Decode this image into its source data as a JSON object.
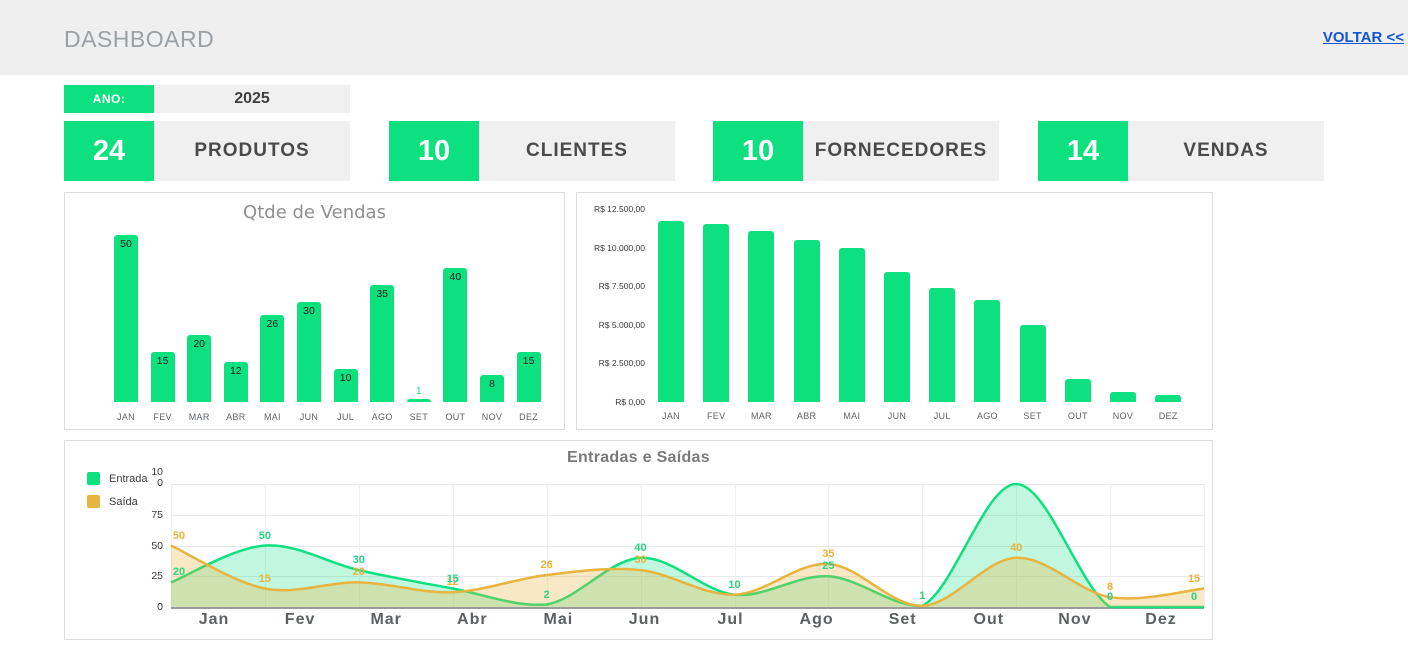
{
  "header": {
    "title": "DASHBOARD",
    "back_link": "VOLTAR <<"
  },
  "ano": {
    "label": "ANO:",
    "value": "2025"
  },
  "kpis": [
    {
      "value": "24",
      "label": "PRODUTOS"
    },
    {
      "value": "10",
      "label": "CLIENTES"
    },
    {
      "value": "10",
      "label": "FORNECEDORES"
    },
    {
      "value": "14",
      "label": "VENDAS"
    }
  ],
  "colors": {
    "green": "#0de07e",
    "gold": "#e7b440",
    "green_label": "#2bd487",
    "gold_label": "#eab33c",
    "link_blue": "#1254d6",
    "header_bg": "#efefef",
    "gray_box": "#f0f0f0"
  },
  "chart_data": [
    {
      "type": "bar",
      "title": "Qtde de Vendas",
      "categories": [
        "JAN",
        "FEV",
        "MAR",
        "ABR",
        "MAI",
        "JUN",
        "JUL",
        "AGO",
        "SET",
        "OUT",
        "NOV",
        "DEZ"
      ],
      "values": [
        50,
        15,
        20,
        12,
        26,
        30,
        10,
        35,
        1,
        40,
        8,
        15
      ],
      "bar_labels": [
        "50",
        "15",
        "20",
        "12",
        "26",
        "30",
        "10",
        "35",
        "1",
        "40",
        "8",
        "15"
      ],
      "ylim": [
        0,
        52
      ],
      "grid": false,
      "legend_position": "none"
    },
    {
      "type": "bar",
      "title": "",
      "categories": [
        "JAN",
        "FEV",
        "MAR",
        "ABR",
        "MAI",
        "JUN",
        "JUL",
        "AGO",
        "SET",
        "OUT",
        "NOV",
        "DEZ"
      ],
      "values": [
        11700,
        11500,
        11100,
        10500,
        10000,
        8450,
        7400,
        6600,
        5000,
        1500,
        650,
        450
      ],
      "ylabel": "R$",
      "ylim": [
        0,
        12500
      ],
      "yticks": [
        {
          "value": 12500,
          "label": "R$ 12.500,00"
        },
        {
          "value": 10000,
          "label": "R$ 10.000,00"
        },
        {
          "value": 7500,
          "label": "R$ 7.500,00"
        },
        {
          "value": 5000,
          "label": "R$ 5.000,00"
        },
        {
          "value": 2500,
          "label": "R$ 2.500,00"
        },
        {
          "value": 0,
          "label": "R$ 0,00"
        }
      ],
      "grid": false,
      "legend_position": "none"
    },
    {
      "type": "area",
      "title": "Entradas e Saídas",
      "categories": [
        "Jan",
        "Fev",
        "Mar",
        "Abr",
        "Mai",
        "Jun",
        "Jul",
        "Ago",
        "Set",
        "Out",
        "Nov",
        "Dez"
      ],
      "series": [
        {
          "name": "Entrada",
          "values": [
            20,
            50,
            30,
            15,
            2,
            40,
            10,
            25,
            1,
            100,
            0,
            0
          ],
          "shown_labels": [
            "20",
            "50",
            "30",
            "15",
            "2",
            "40",
            "10",
            "25",
            "1",
            null,
            "0",
            "0"
          ]
        },
        {
          "name": "Saída",
          "values": [
            50,
            15,
            20,
            12,
            26,
            30,
            10,
            35,
            1,
            40,
            8,
            15
          ],
          "shown_labels": [
            "50",
            "15",
            "20",
            "12",
            "26",
            "30",
            "10",
            "35",
            "1",
            "40",
            "8",
            "15"
          ]
        }
      ],
      "ylim": [
        0,
        100
      ],
      "yticks": [
        {
          "value": 100,
          "label": "100"
        },
        {
          "value": 75,
          "label": "75"
        },
        {
          "value": 50,
          "label": "50"
        },
        {
          "value": 25,
          "label": "25"
        },
        {
          "value": 0,
          "label": "0"
        }
      ],
      "grid": true,
      "legend_position": "left"
    }
  ]
}
